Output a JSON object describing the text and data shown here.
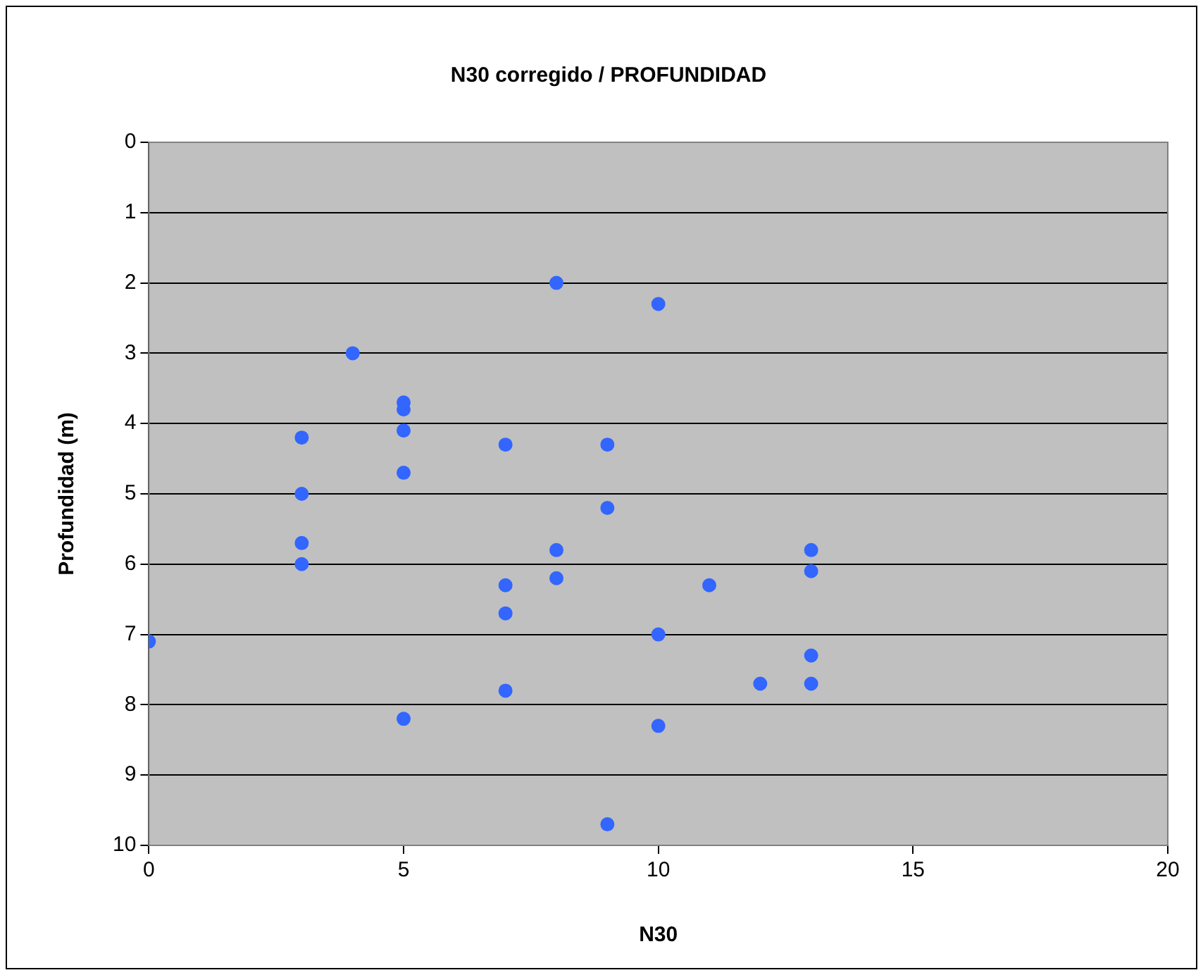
{
  "chart_data": {
    "type": "scatter",
    "title": "N30 corregido / PROFUNDIDAD",
    "xlabel": "N30",
    "ylabel": "Profundidad (m)",
    "x": [
      8,
      10,
      4,
      5,
      5,
      5,
      3,
      7,
      9,
      5,
      3,
      9,
      3,
      8,
      13,
      3,
      13,
      8,
      7,
      11,
      7,
      10,
      0,
      13,
      12,
      13,
      7,
      5,
      10,
      9
    ],
    "values": [
      2.0,
      2.3,
      3.0,
      3.7,
      3.8,
      4.1,
      4.2,
      4.3,
      4.3,
      4.7,
      5.0,
      5.2,
      5.7,
      5.8,
      5.8,
      6.0,
      6.1,
      6.2,
      6.3,
      6.3,
      6.7,
      7.0,
      7.1,
      7.3,
      7.7,
      7.7,
      7.8,
      8.2,
      8.3,
      9.7
    ],
    "color": "#3366ff",
    "marker": "circle",
    "xlim": [
      0,
      20
    ],
    "xticks": [
      0,
      5,
      10,
      15,
      20
    ],
    "ylim": [
      10,
      0
    ],
    "yticks": [
      0,
      1,
      2,
      3,
      4,
      5,
      6,
      7,
      8,
      9,
      10
    ],
    "grid": "y",
    "legend": false
  }
}
